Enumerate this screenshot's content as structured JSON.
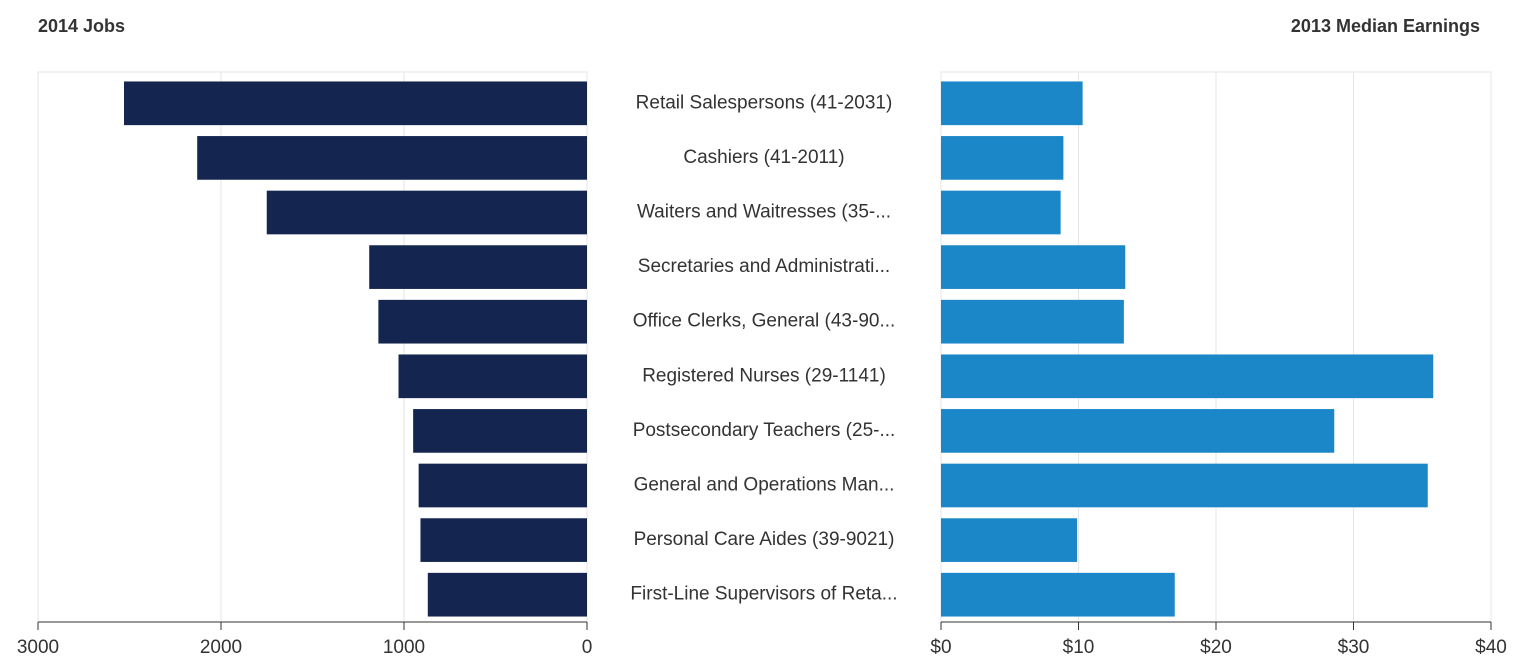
{
  "chart_data": [
    {
      "type": "bar",
      "orientation": "horizontal",
      "title": "2014 Jobs",
      "categories": [
        "Retail Salespersons (41-2031)",
        "Cashiers (41-2011)",
        "Waiters and Waitresses (35-...",
        "Secretaries and Administrati...",
        "Office Clerks, General (43-90...",
        "Registered Nurses (29-1141)",
        "Postsecondary Teachers (25-...",
        "General and Operations Man...",
        "Personal Care Aides (39-9021)",
        "First-Line Supervisors of Reta..."
      ],
      "values": [
        2530,
        2130,
        1750,
        1190,
        1140,
        1030,
        950,
        920,
        910,
        870
      ],
      "color": "#14254f",
      "xlim": [
        3000,
        0
      ],
      "xticks": [
        3000,
        2000,
        1000,
        0
      ],
      "grid": true
    },
    {
      "type": "bar",
      "orientation": "horizontal",
      "title": "2013 Median Earnings",
      "values": [
        10.3,
        8.9,
        8.7,
        13.4,
        13.3,
        35.8,
        28.6,
        35.4,
        9.9,
        17.0
      ],
      "color": "#1b87c8",
      "xlim": [
        0,
        40
      ],
      "xticks": [
        {
          "value": 0,
          "label": "$0"
        },
        {
          "value": 10,
          "label": "$10"
        },
        {
          "value": 20,
          "label": "$20"
        },
        {
          "value": 30,
          "label": "$30"
        },
        {
          "value": 40,
          "label": "$40"
        }
      ],
      "grid": true
    }
  ]
}
